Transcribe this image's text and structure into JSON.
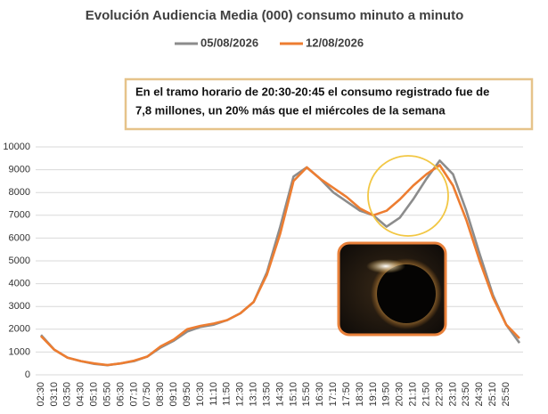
{
  "chart_data": {
    "type": "line",
    "title": "Evolución Audiencia Media (000) consumo minuto a minuto",
    "annotations": [
      "En el tramo horario de 20:30-20:45 el consumo  registrado fue de",
      "7,8 millones,  un 20% más que el miércoles de la semana"
    ],
    "categories": [
      "02:30",
      "03:10",
      "03:50",
      "04:30",
      "05:10",
      "05:50",
      "06:30",
      "07:10",
      "07:50",
      "08:30",
      "09:10",
      "09:50",
      "10:30",
      "11:10",
      "11:50",
      "12:30",
      "13:10",
      "13:50",
      "14:30",
      "15:10",
      "15:50",
      "16:30",
      "17:10",
      "17:50",
      "18:30",
      "19:10",
      "19:50",
      "20:30",
      "21:10",
      "21:50",
      "22:30",
      "23:10",
      "23:50",
      "24:30",
      "25:10",
      "25:50",
      null
    ],
    "series": [
      {
        "name": "05/08/2026",
        "color": "#8c8c8c",
        "values": [
          1750,
          1100,
          750,
          600,
          480,
          420,
          500,
          600,
          800,
          1200,
          1500,
          1900,
          2100,
          2200,
          2400,
          2700,
          3200,
          4500,
          6500,
          8700,
          9100,
          8600,
          8000,
          7600,
          7200,
          7000,
          6500,
          6900,
          7700,
          8600,
          9400,
          8800,
          7200,
          5300,
          3500,
          2200,
          1400
        ]
      },
      {
        "name": "12/08/2026",
        "color": "#ed7d31",
        "values": [
          1700,
          1100,
          750,
          600,
          500,
          430,
          500,
          620,
          800,
          1250,
          1550,
          2000,
          2150,
          2250,
          2400,
          2700,
          3200,
          4400,
          6200,
          8500,
          9100,
          8600,
          8200,
          7800,
          7300,
          7000,
          7200,
          7700,
          8300,
          8800,
          9200,
          8300,
          6800,
          5000,
          3400,
          2200,
          1600
        ]
      }
    ],
    "ylim": [
      0,
      10000
    ],
    "yticks": [
      0,
      1000,
      2000,
      3000,
      4000,
      5000,
      6000,
      7000,
      8000,
      9000,
      10000
    ],
    "grid": true
  }
}
